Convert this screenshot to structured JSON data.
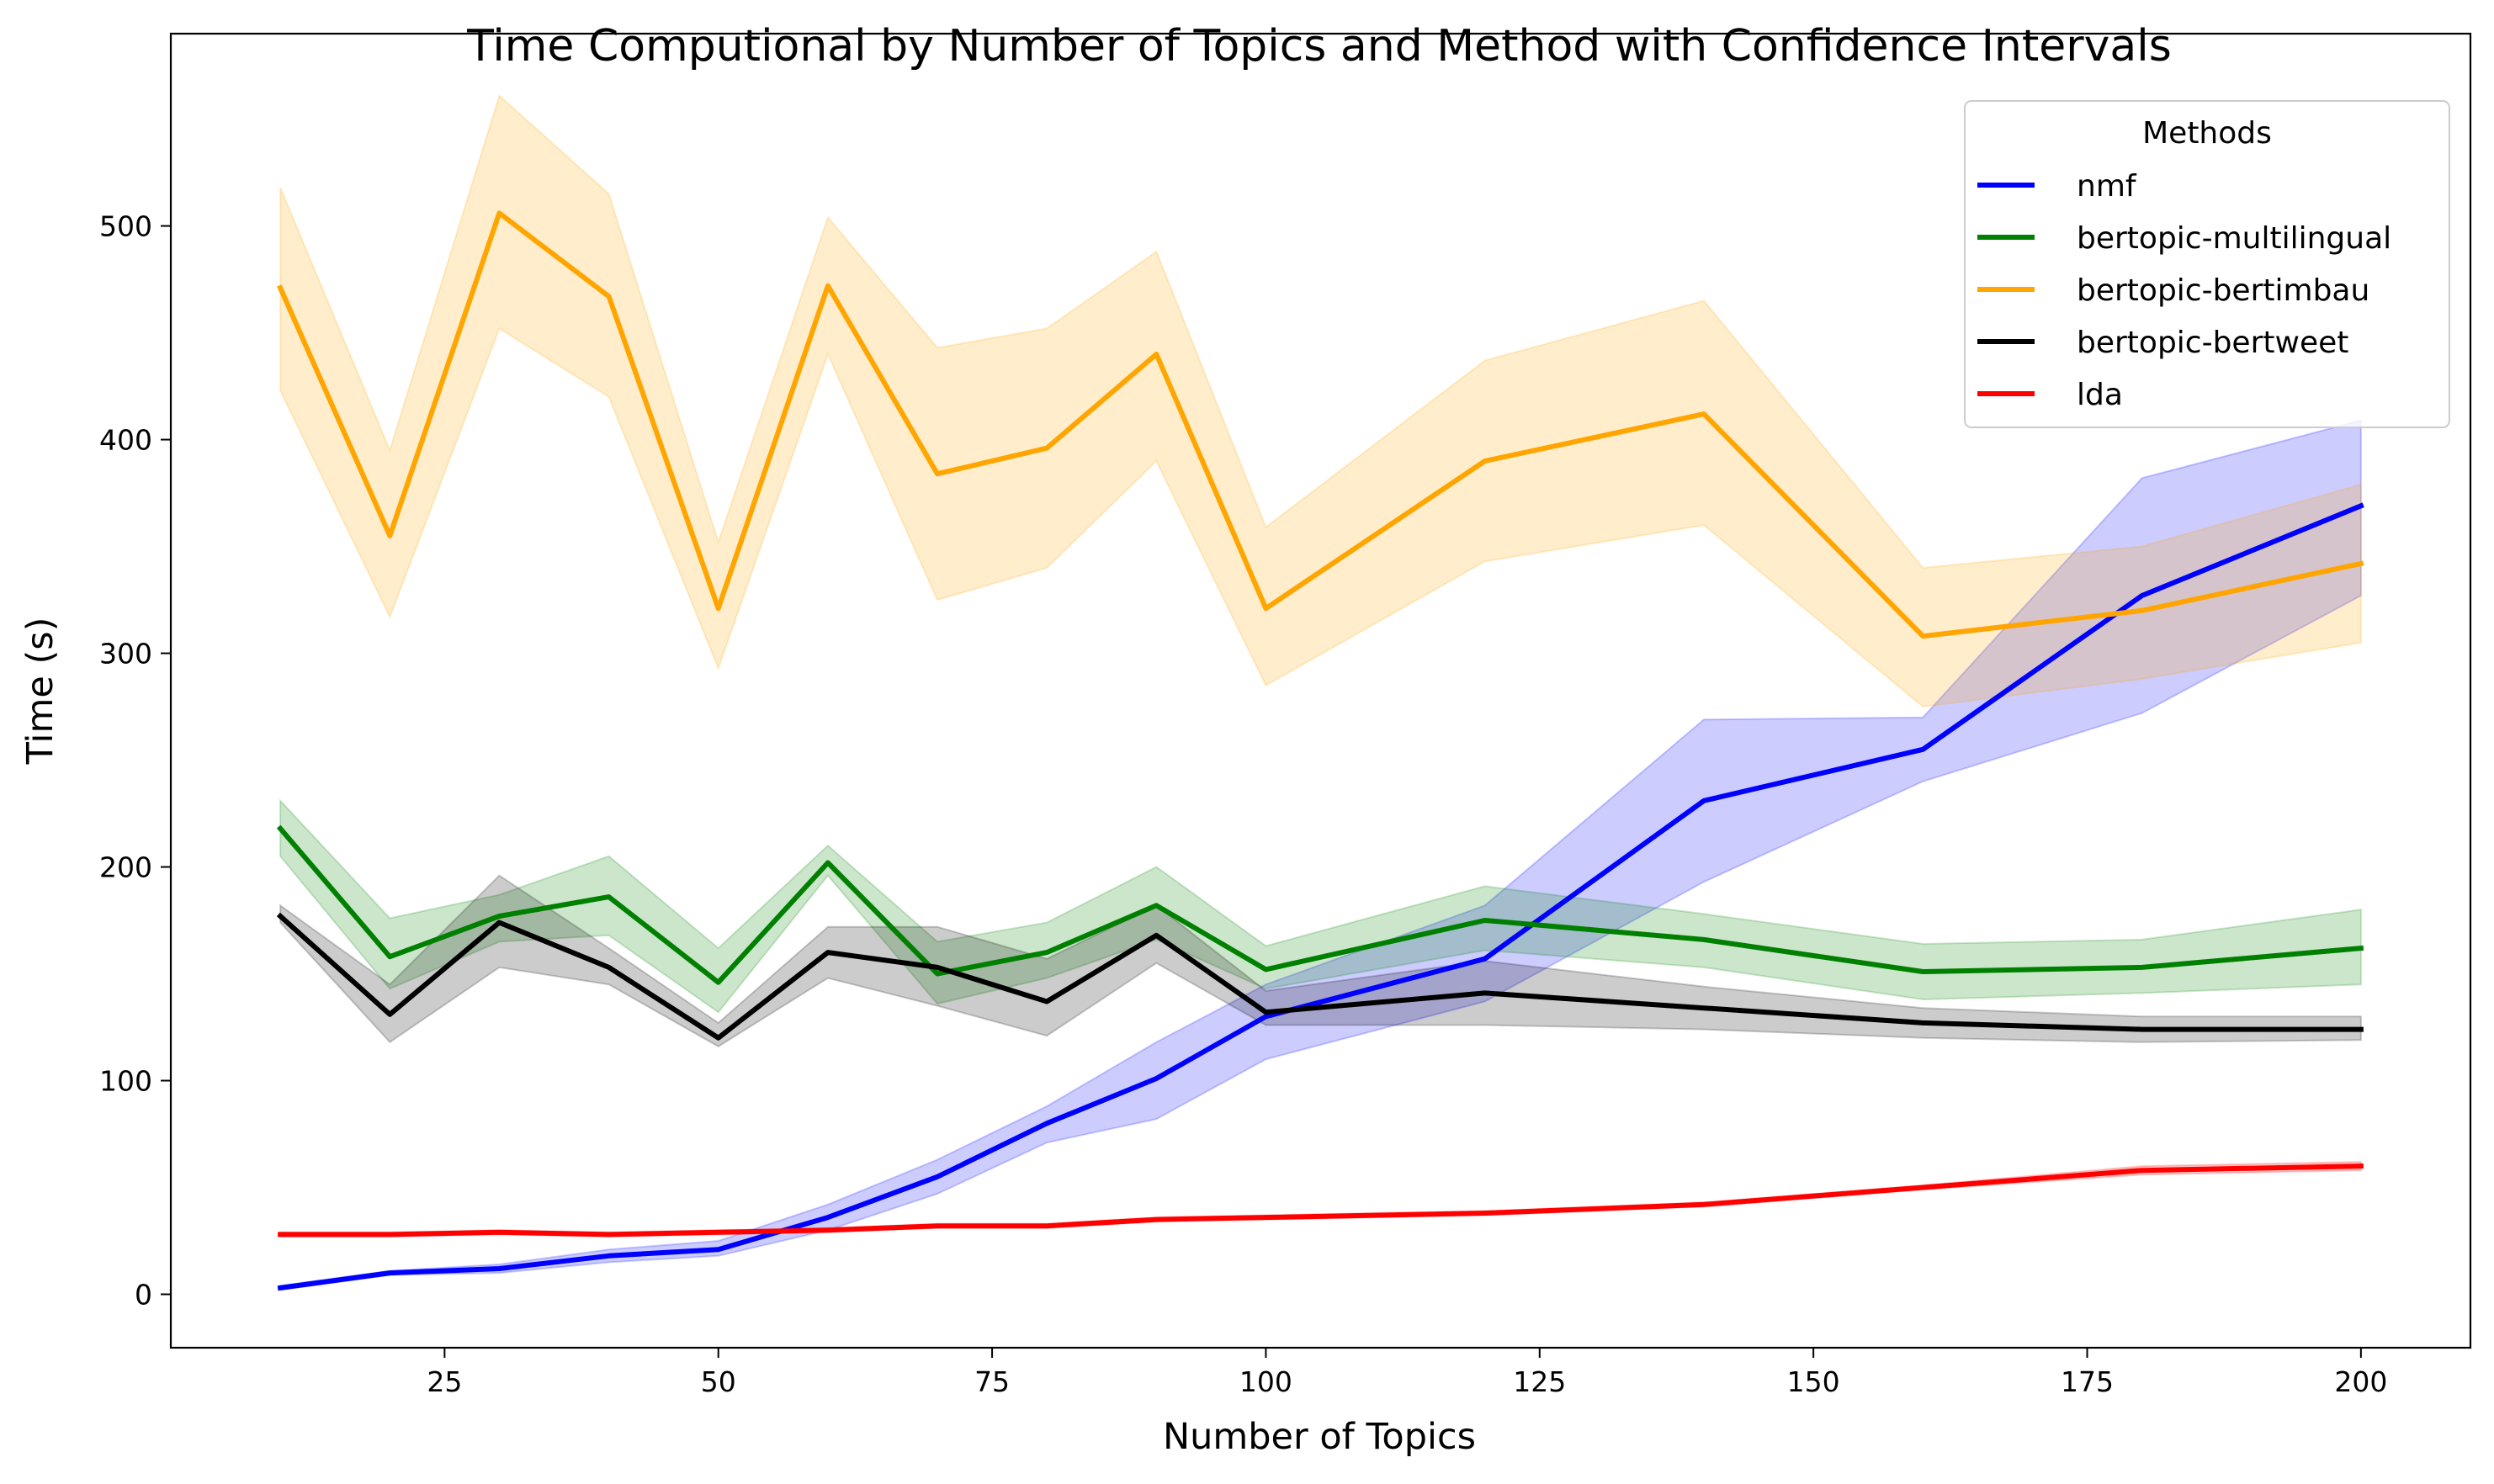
{
  "chart_data": {
    "type": "line",
    "title": "Time Computional by Number of Topics and Method with Confidence Intervals",
    "xlabel": "Number of Topics",
    "ylabel": "Time (s)",
    "xlim": [
      0,
      210
    ],
    "ylim": [
      -25,
      590
    ],
    "xticks": [
      25,
      50,
      75,
      100,
      125,
      150,
      175,
      200
    ],
    "yticks": [
      0,
      100,
      200,
      300,
      400,
      500
    ],
    "x": [
      10,
      20,
      30,
      40,
      50,
      60,
      70,
      80,
      90,
      100,
      120,
      140,
      160,
      180,
      200
    ],
    "grid": false,
    "legend": {
      "title": "Methods",
      "position": "top-right"
    },
    "series": [
      {
        "name": "nmf",
        "color": "#0000ff",
        "values": [
          3,
          10,
          12,
          18,
          21,
          36,
          55,
          80,
          101,
          130,
          157,
          231,
          255,
          327,
          369
        ],
        "lower": [
          2,
          9,
          10,
          15,
          18,
          30,
          47,
          71,
          82,
          110,
          137,
          193,
          240,
          272,
          327
        ],
        "upper": [
          4,
          11,
          14,
          21,
          25,
          42,
          63,
          88,
          118,
          145,
          182,
          269,
          270,
          382,
          409
        ]
      },
      {
        "name": "bertopic-multilingual",
        "color": "#008000",
        "values": [
          218,
          158,
          177,
          186,
          146,
          202,
          150,
          160,
          182,
          152,
          175,
          166,
          151,
          153,
          162
        ],
        "lower": [
          205,
          143,
          165,
          168,
          132,
          196,
          136,
          148,
          166,
          143,
          161,
          153,
          138,
          141,
          145
        ],
        "upper": [
          231,
          176,
          187,
          205,
          162,
          210,
          165,
          174,
          200,
          163,
          191,
          178,
          164,
          166,
          180
        ]
      },
      {
        "name": "bertopic-bertimbau",
        "color": "#ffa500",
        "values": [
          471,
          355,
          506,
          467,
          321,
          472,
          384,
          396,
          440,
          321,
          390,
          412,
          308,
          320,
          342
        ],
        "lower": [
          423,
          317,
          452,
          420,
          293,
          440,
          325,
          340,
          390,
          285,
          343,
          360,
          275,
          288,
          305
        ],
        "upper": [
          518,
          395,
          561,
          515,
          352,
          504,
          443,
          452,
          488,
          359,
          437,
          465,
          340,
          350,
          379
        ]
      },
      {
        "name": "bertopic-bertweet",
        "color": "#000000",
        "values": [
          177,
          131,
          174,
          153,
          120,
          160,
          153,
          137,
          168,
          132,
          141,
          134,
          127,
          124,
          124
        ],
        "lower": [
          174,
          118,
          153,
          145,
          116,
          148,
          135,
          121,
          155,
          126,
          126,
          124,
          120,
          118,
          119
        ],
        "upper": [
          182,
          145,
          196,
          162,
          127,
          172,
          172,
          157,
          182,
          142,
          156,
          144,
          134,
          130,
          130
        ]
      },
      {
        "name": "lda",
        "color": "#ff0000",
        "values": [
          28,
          28,
          29,
          28,
          29,
          30,
          32,
          32,
          35,
          36,
          38,
          42,
          50,
          58,
          60
        ],
        "lower": [
          27,
          27,
          28,
          27,
          28,
          29,
          31,
          31,
          34,
          35,
          37,
          41,
          49,
          56,
          58
        ],
        "upper": [
          29,
          29,
          30,
          29,
          30,
          31,
          33,
          33,
          36,
          37,
          39,
          43,
          51,
          60,
          62
        ]
      }
    ]
  }
}
